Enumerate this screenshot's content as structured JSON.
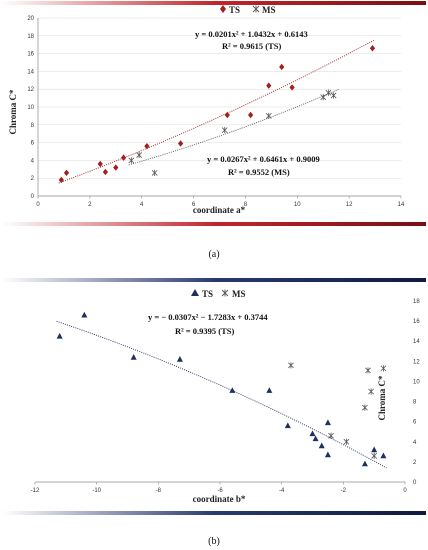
{
  "chart_data": [
    {
      "type": "scatter",
      "panel": "a",
      "caption": "(a)",
      "xlabel": "coordinate a*",
      "ylabel": "Chroma C*",
      "xlim": [
        0,
        14
      ],
      "ylim": [
        0,
        20
      ],
      "xticks": [
        "0",
        "2",
        "4",
        "6",
        "8",
        "10",
        "12",
        "14"
      ],
      "yticks": [
        "0",
        "2",
        "4",
        "6",
        "8",
        "10",
        "12",
        "14",
        "16",
        "18",
        "20"
      ],
      "legend": [
        "TS",
        "MS"
      ],
      "series": [
        {
          "name": "TS",
          "marker": "diamond",
          "color": "#a51d1d",
          "points": [
            [
              0.9,
              1.8
            ],
            [
              1.1,
              2.6
            ],
            [
              2.4,
              3.6
            ],
            [
              2.6,
              2.7
            ],
            [
              3.0,
              3.2
            ],
            [
              3.3,
              4.3
            ],
            [
              4.2,
              5.6
            ],
            [
              5.5,
              5.9
            ],
            [
              7.3,
              9.1
            ],
            [
              8.2,
              9.1
            ],
            [
              8.9,
              12.4
            ],
            [
              9.4,
              14.5
            ],
            [
              9.8,
              12.2
            ],
            [
              12.9,
              16.6
            ]
          ]
        },
        {
          "name": "MS",
          "marker": "x",
          "color": "#555555",
          "points": [
            [
              3.6,
              4.0
            ],
            [
              3.9,
              4.6
            ],
            [
              4.5,
              2.6
            ],
            [
              7.2,
              7.4
            ],
            [
              8.9,
              9.0
            ],
            [
              11.0,
              11.1
            ],
            [
              11.2,
              11.6
            ],
            [
              11.4,
              11.3
            ]
          ]
        }
      ],
      "trendlines": [
        {
          "series": "TS",
          "a": 0.0201,
          "b": 1.0432,
          "c": 0.6143,
          "x_range": [
            0.8,
            13.0
          ],
          "equation": "y = 0.0201x² + 1.0432x + 0.6143",
          "r2": "R² = 0.9615 (TS)"
        },
        {
          "series": "MS",
          "a": 0.0267,
          "b": 0.6461,
          "c": 0.9009,
          "x_range": [
            3.5,
            11.6
          ],
          "equation": "y = 0.0267x² + 0.6461x + 0.9009",
          "r2": "R² = 0.9552 (MS)"
        }
      ],
      "frame_color": "#c0272d"
    },
    {
      "type": "scatter",
      "panel": "b",
      "caption": "(b)",
      "xlabel": "coordinate b*",
      "ylabel": "Chroma C*",
      "xlim": [
        -12,
        0
      ],
      "ylim": [
        0,
        18
      ],
      "xticks": [
        "-12",
        "-10",
        "-8",
        "-6",
        "-4",
        "-2",
        "0"
      ],
      "yticks": [
        "0",
        "2",
        "4",
        "6",
        "8",
        "10",
        "12",
        "14",
        "16",
        "18"
      ],
      "legend": [
        "TS",
        "MS"
      ],
      "series": [
        {
          "name": "TS",
          "marker": "triangle",
          "color": "#1f2f5e",
          "points": [
            [
              -11.2,
              14.5
            ],
            [
              -10.4,
              16.6
            ],
            [
              -8.8,
              12.4
            ],
            [
              -7.3,
              12.2
            ],
            [
              -5.6,
              9.1
            ],
            [
              -4.4,
              9.1
            ],
            [
              -3.8,
              5.6
            ],
            [
              -3.0,
              4.8
            ],
            [
              -2.9,
              4.3
            ],
            [
              -2.7,
              3.6
            ],
            [
              -2.5,
              2.7
            ],
            [
              -2.5,
              5.9
            ],
            [
              -1.3,
              1.8
            ],
            [
              -1.0,
              3.2
            ],
            [
              -0.7,
              2.6
            ]
          ]
        },
        {
          "name": "MS",
          "marker": "x",
          "color": "#555555",
          "points": [
            [
              -3.7,
              11.6
            ],
            [
              -2.4,
              4.6
            ],
            [
              -1.9,
              4.0
            ],
            [
              -1.3,
              7.4
            ],
            [
              -1.2,
              11.1
            ],
            [
              -1.1,
              9.0
            ],
            [
              -1.0,
              2.6
            ],
            [
              -0.7,
              11.3
            ]
          ]
        }
      ],
      "trendlines": [
        {
          "series": "TS",
          "a": -0.0307,
          "b": -1.7283,
          "c": 0.3744,
          "x_range": [
            -11.3,
            -0.6
          ],
          "equation": "y = − 0.0307x² − 1.7283x + 0.3744",
          "r2": "R² = 0.9395 (TS)"
        }
      ],
      "frame_color": "#1f2f5e"
    }
  ]
}
